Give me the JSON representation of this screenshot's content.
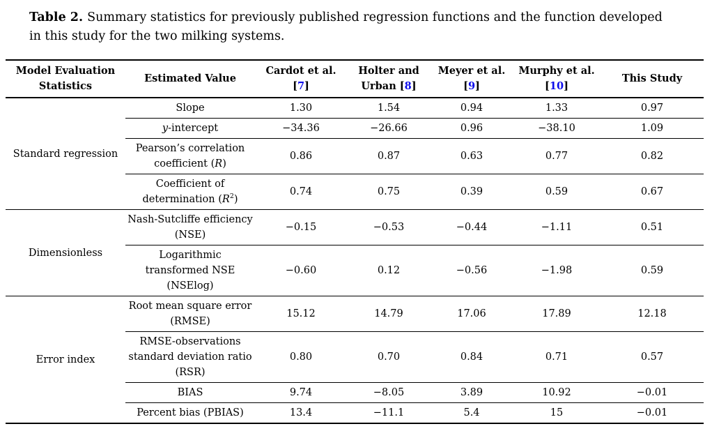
{
  "colors": {
    "background": "#ffffff",
    "text": "#000000",
    "rule": "#000000",
    "citation_link": "#0d0deb"
  },
  "caption": {
    "label": "Table 2.",
    "line1": "Summary statistics for previously published regression functions and the function developed",
    "line2": "in this study for the two milking systems."
  },
  "table": {
    "col_headers": [
      {
        "id": "model-evaluation-statistics",
        "lines": [
          [
            "Model Evaluation"
          ],
          [
            "Statistics"
          ]
        ]
      },
      {
        "id": "estimated-value",
        "lines": [
          [
            "Estimated Value"
          ]
        ]
      },
      {
        "id": "cardot-et-al",
        "lines": [
          [
            "Cardot et al."
          ],
          [
            "[",
            {
              "ref": "7"
            },
            "]"
          ]
        ]
      },
      {
        "id": "holter-and-urban",
        "lines": [
          [
            "Holter and"
          ],
          [
            "Urban [",
            {
              "ref": "8"
            },
            "]"
          ]
        ]
      },
      {
        "id": "meyer-et-al",
        "lines": [
          [
            "Meyer et al."
          ],
          [
            "[",
            {
              "ref": "9"
            },
            "]"
          ]
        ]
      },
      {
        "id": "murphy-et-al",
        "lines": [
          [
            "Murphy et al."
          ],
          [
            "[",
            {
              "ref": "10"
            },
            "]"
          ]
        ]
      },
      {
        "id": "this-study",
        "lines": [
          [
            "This Study"
          ]
        ]
      }
    ],
    "row_groups": [
      {
        "id": "standard-regression",
        "label": "Standard regression",
        "rows": [
          {
            "id": "slope",
            "lines": [
              [
                "Slope"
              ]
            ],
            "values": [
              "1.30",
              "1.54",
              "0.94",
              "1.33",
              "0.97"
            ]
          },
          {
            "id": "y-intercept",
            "lines": [
              [
                {
                  "i": "y"
                },
                "-intercept"
              ]
            ],
            "values": [
              "−34.36",
              "−26.66",
              "0.96",
              "−38.10",
              "1.09"
            ]
          },
          {
            "id": "pearson-correlation-coefficient",
            "lines": [
              [
                "Pearson’s correlation"
              ],
              [
                "coefficient (",
                {
                  "i": "R"
                },
                ")"
              ]
            ],
            "values": [
              "0.86",
              "0.87",
              "0.63",
              "0.77",
              "0.82"
            ]
          },
          {
            "id": "coefficient-of-determination",
            "lines": [
              [
                "Coefficient of"
              ],
              [
                "determination (",
                {
                  "i": "R"
                },
                {
                  "sup": "2"
                },
                ")"
              ]
            ],
            "values": [
              "0.74",
              "0.75",
              "0.39",
              "0.59",
              "0.67"
            ]
          }
        ]
      },
      {
        "id": "dimensionless",
        "label": "Dimensionless",
        "rows": [
          {
            "id": "nse",
            "lines": [
              [
                "Nash-Sutcliffe efficiency"
              ],
              [
                "(NSE)"
              ]
            ],
            "values": [
              "−0.15",
              "−0.53",
              "−0.44",
              "−1.11",
              "0.51"
            ]
          },
          {
            "id": "nselog",
            "lines": [
              [
                "Logarithmic"
              ],
              [
                "transformed NSE"
              ],
              [
                "(NSElog)"
              ]
            ],
            "values": [
              "−0.60",
              "0.12",
              "−0.56",
              "−1.98",
              "0.59"
            ]
          }
        ]
      },
      {
        "id": "error-index",
        "label": "Error index",
        "rows": [
          {
            "id": "rmse",
            "lines": [
              [
                "Root mean square error"
              ],
              [
                "(RMSE)"
              ]
            ],
            "values": [
              "15.12",
              "14.79",
              "17.06",
              "17.89",
              "12.18"
            ]
          },
          {
            "id": "rsr",
            "lines": [
              [
                "RMSE-observations"
              ],
              [
                "standard deviation ratio"
              ],
              [
                "(RSR)"
              ]
            ],
            "values": [
              "0.80",
              "0.70",
              "0.84",
              "0.71",
              "0.57"
            ]
          },
          {
            "id": "bias",
            "lines": [
              [
                "BIAS"
              ]
            ],
            "values": [
              "9.74",
              "−8.05",
              "3.89",
              "10.92",
              "−0.01"
            ]
          },
          {
            "id": "pbias",
            "lines": [
              [
                "Percent bias (PBIAS)"
              ]
            ],
            "values": [
              "13.4",
              "−11.1",
              "5.4",
              "15",
              "−0.01"
            ]
          }
        ]
      }
    ]
  }
}
